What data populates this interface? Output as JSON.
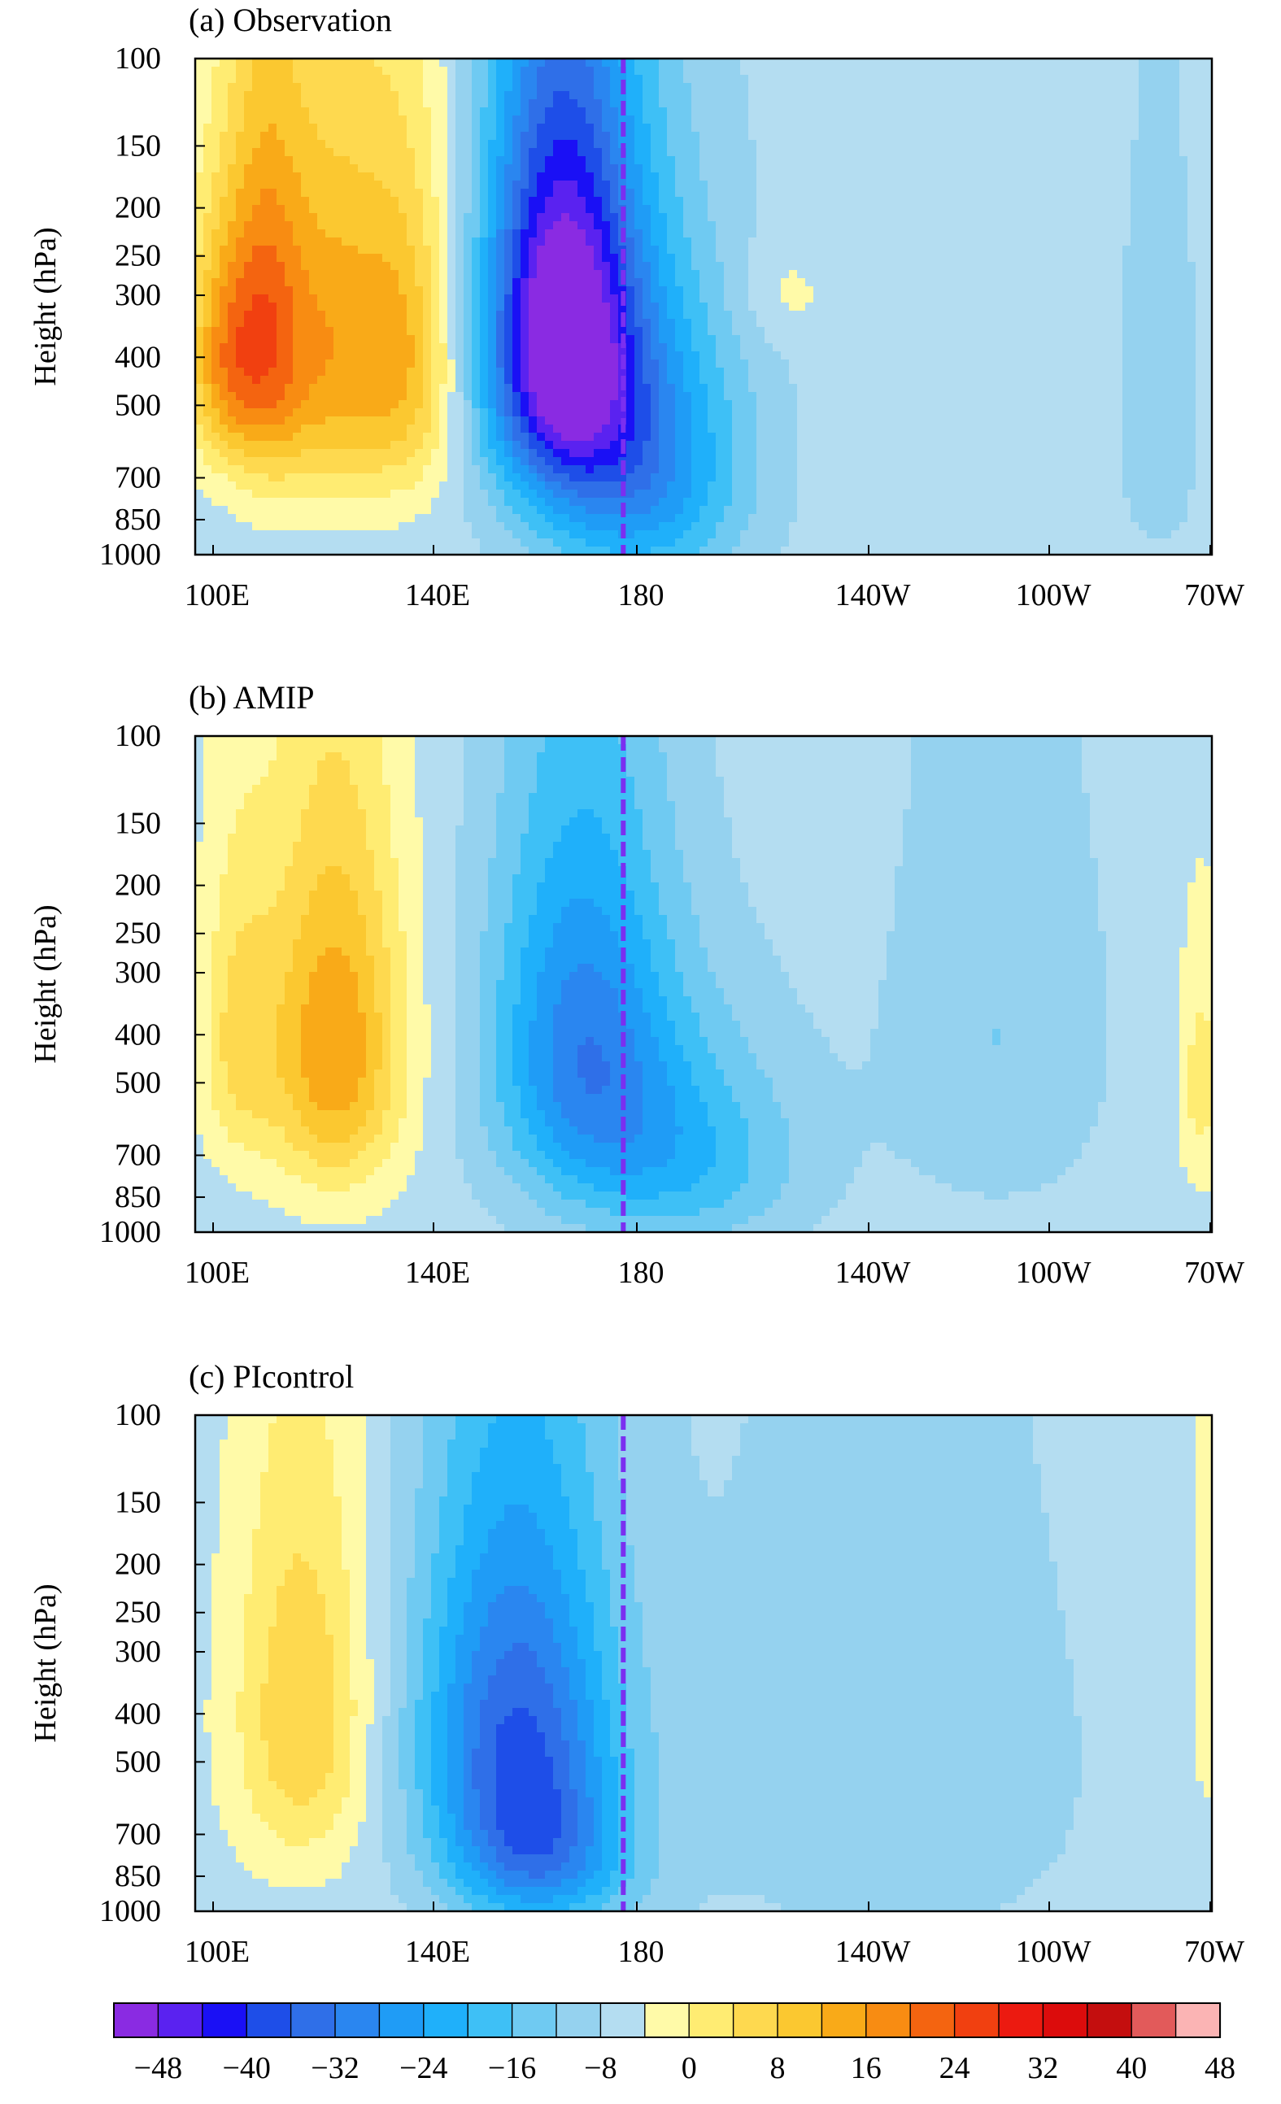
{
  "chart_data": [
    {
      "type": "heatmap",
      "title": "(a) Observation",
      "ylabel": "Height (hPa)",
      "xlabel": "",
      "x_ticks": [
        "100E",
        "140E",
        "180",
        "140W",
        "100W",
        "70W"
      ],
      "y_ticks": [
        "100",
        "150",
        "200",
        "250",
        "300",
        "400",
        "500",
        "700",
        "850",
        "1000"
      ],
      "xlim": [
        100,
        290
      ],
      "ylim": [
        1000,
        100
      ],
      "reference_line": {
        "lon": 180,
        "style": "dashed",
        "color": "#7b2ff0"
      },
      "anomalies": [
        {
          "lon": 105,
          "p": 400,
          "value": 18,
          "sx": 5,
          "sy": 160
        },
        {
          "lon": 113,
          "p": 350,
          "value": 16,
          "sx": 5,
          "sy": 220
        },
        {
          "lon": 124,
          "p": 380,
          "value": 20,
          "sx": 10,
          "sy": 240
        },
        {
          "lon": 140,
          "p": 400,
          "value": 14,
          "sx": 7,
          "sy": 220
        },
        {
          "lon": 168,
          "p": 350,
          "value": -44,
          "sx": 10,
          "sy": 230
        },
        {
          "lon": 182,
          "p": 650,
          "value": -24,
          "sx": 14,
          "sy": 320
        },
        {
          "lon": 210,
          "p": 300,
          "value": 4,
          "sx": 6,
          "sy": 50
        },
        {
          "lon": 280,
          "p": 500,
          "value": -6,
          "sx": 5,
          "sy": 300
        }
      ]
    },
    {
      "type": "heatmap",
      "title": "(b) AMIP",
      "ylabel": "Height (hPa)",
      "xlabel": "",
      "x_ticks": [
        "100E",
        "140E",
        "180",
        "140W",
        "100W",
        "70W"
      ],
      "y_ticks": [
        "100",
        "150",
        "200",
        "250",
        "300",
        "400",
        "500",
        "700",
        "850",
        "1000"
      ],
      "xlim": [
        100,
        290
      ],
      "ylim": [
        1000,
        100
      ],
      "reference_line": {
        "lon": 180,
        "style": "dashed",
        "color": "#7b2ff0"
      },
      "anomalies": [
        {
          "lon": 126,
          "p": 420,
          "value": 22,
          "sx": 9,
          "sy": 250
        },
        {
          "lon": 108,
          "p": 400,
          "value": 10,
          "sx": 5,
          "sy": 200
        },
        {
          "lon": 172,
          "p": 400,
          "value": -22,
          "sx": 12,
          "sy": 260
        },
        {
          "lon": 190,
          "p": 700,
          "value": -14,
          "sx": 16,
          "sy": 250
        },
        {
          "lon": 250,
          "p": 400,
          "value": -6,
          "sx": 14,
          "sy": 300
        },
        {
          "lon": 288,
          "p": 500,
          "value": 8,
          "sx": 3,
          "sy": 200
        }
      ]
    },
    {
      "type": "heatmap",
      "title": "(c) PIcontrol",
      "ylabel": "Height (hPa)",
      "xlabel": "",
      "x_ticks": [
        "100E",
        "140E",
        "180",
        "140W",
        "100W",
        "70W"
      ],
      "y_ticks": [
        "100",
        "150",
        "200",
        "250",
        "300",
        "400",
        "500",
        "700",
        "850",
        "1000"
      ],
      "xlim": [
        100,
        290
      ],
      "ylim": [
        1000,
        100
      ],
      "reference_line": {
        "lon": 180,
        "style": "dashed",
        "color": "#7b2ff0"
      },
      "anomalies": [
        {
          "lon": 120,
          "p": 400,
          "value": 14,
          "sx": 9,
          "sy": 260
        },
        {
          "lon": 160,
          "p": 420,
          "value": -28,
          "sx": 13,
          "sy": 280
        },
        {
          "lon": 165,
          "p": 800,
          "value": -18,
          "sx": 12,
          "sy": 200
        },
        {
          "lon": 230,
          "p": 500,
          "value": -4,
          "sx": 30,
          "sy": 500
        },
        {
          "lon": 289,
          "p": 300,
          "value": 4,
          "sx": 3,
          "sy": 300
        }
      ]
    }
  ],
  "colorbar": {
    "levels": [
      -48,
      -44,
      -40,
      -36,
      -32,
      -28,
      -24,
      -20,
      -16,
      -12,
      -8,
      -4,
      0,
      4,
      8,
      12,
      16,
      20,
      24,
      28,
      32,
      36,
      40,
      44,
      48
    ],
    "colors": [
      "#8a2be2",
      "#5a22f0",
      "#1a10f5",
      "#1e4ee8",
      "#2f6fe8",
      "#2a86f0",
      "#1f9cf6",
      "#1fb0fa",
      "#3ec0f6",
      "#6fcaf2",
      "#95d2ef",
      "#b4ddf1",
      "#fffaa8",
      "#ffec72",
      "#fed94f",
      "#fbc830",
      "#f9aa18",
      "#f88c12",
      "#f46410",
      "#f14010",
      "#ec1a10",
      "#dc0c0c",
      "#c40e0e",
      "#e25a5a",
      "#fbb4b4"
    ],
    "tick_labels": [
      "−48",
      "−40",
      "−32",
      "−24",
      "−16",
      "−8",
      "0",
      "8",
      "16",
      "24",
      "32",
      "40",
      "48"
    ]
  }
}
